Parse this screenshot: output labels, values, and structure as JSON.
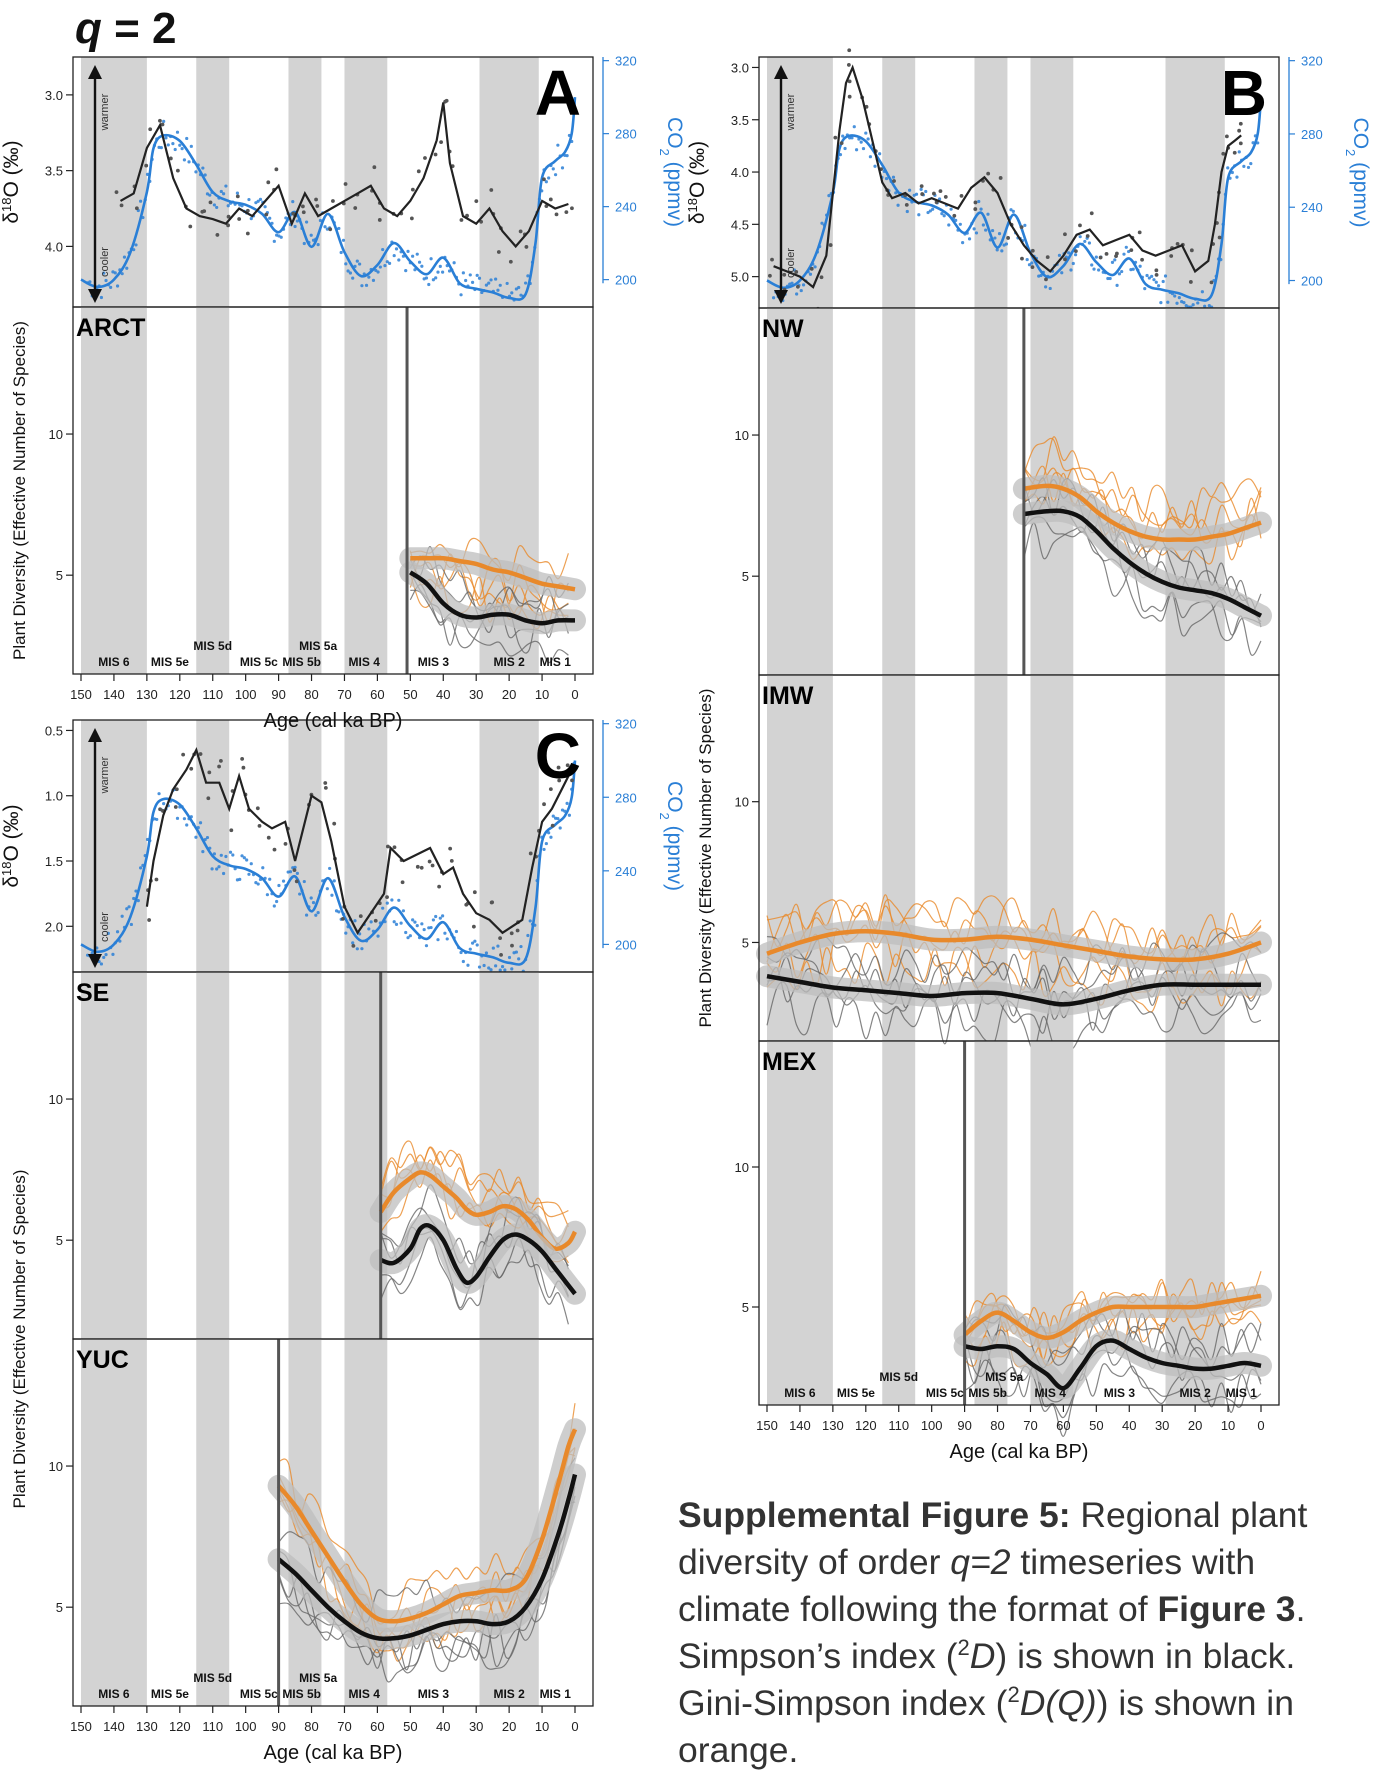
{
  "figure": {
    "title_prefix": "q",
    "title_suffix": " = 2",
    "caption": {
      "lead": "Supplemental Figure 5:",
      "p1": " Regional plant diversity of order ",
      "q_term": "q=2",
      "p2": " timeseries with climate following the format of ",
      "fig_ref": "Figure 3",
      "p3": ". Simpson’s index (",
      "d_sup": "2",
      "d_letter": "D",
      "p4": ") is shown in black. Gini-Simpson index (",
      "gs_sup": "2",
      "gs_letter": "D(Q)",
      "p5": ") is shown in orange."
    },
    "colors": {
      "simpson": "#111111",
      "gini_simpson": "#e8892b",
      "co2": "#2a7fd6",
      "mis_band": "#d3d3d3"
    },
    "xlabel": "Age (cal ka BP)",
    "ylabel_diversity": "Plant Diversity (Effective Number of Species)",
    "ylabel_d18o_pre": "δ",
    "ylabel_d18o_sup": "18",
    "ylabel_d18o_post": "O (‰)",
    "ylabel_co2_pre": "CO",
    "ylabel_co2_sub": "2",
    "ylabel_co2_post": " (ppmv)",
    "arrow_up": "warmer",
    "arrow_down": "cooler",
    "x_ticks": [
      150,
      140,
      130,
      120,
      110,
      100,
      90,
      80,
      70,
      60,
      50,
      40,
      30,
      20,
      10,
      0
    ],
    "co2_ticks": [
      320,
      280,
      240,
      200
    ],
    "diversity_ticks": [
      10,
      5
    ],
    "mis_labels": [
      {
        "label": "MIS 6",
        "age": 140,
        "row": "low"
      },
      {
        "label": "MIS 5e",
        "age": 123,
        "row": "low"
      },
      {
        "label": "MIS 5d",
        "age": 110,
        "row": "high"
      },
      {
        "label": "MIS 5c",
        "age": 96,
        "row": "low"
      },
      {
        "label": "MIS 5b",
        "age": 83,
        "row": "low"
      },
      {
        "label": "MIS 5a",
        "age": 78,
        "row": "high"
      },
      {
        "label": "MIS 4",
        "age": 64,
        "row": "low"
      },
      {
        "label": "MIS 3",
        "age": 43,
        "row": "low"
      },
      {
        "label": "MIS 2",
        "age": 20,
        "row": "low"
      },
      {
        "label": "MIS 1",
        "age": 6,
        "row": "low"
      }
    ]
  },
  "chart_data": [
    {
      "type": "line",
      "panel": "A",
      "kind": "climate",
      "d18o_ticks": [
        "3.0",
        "3.5",
        "4.0"
      ],
      "d18o_range": [
        2.75,
        4.4
      ],
      "d18o_x": [
        138,
        134,
        130,
        126,
        122,
        118,
        114,
        110,
        106,
        102,
        98,
        94,
        90,
        86,
        82,
        78,
        74,
        70,
        66,
        62,
        58,
        54,
        50,
        46,
        42,
        40,
        38,
        34,
        30,
        26,
        22,
        18,
        14,
        10,
        6,
        2
      ],
      "d18o": [
        3.7,
        3.65,
        3.35,
        3.2,
        3.55,
        3.75,
        3.8,
        3.82,
        3.85,
        3.75,
        3.8,
        3.7,
        3.6,
        3.85,
        3.65,
        3.8,
        3.75,
        3.7,
        3.65,
        3.6,
        3.75,
        3.8,
        3.7,
        3.55,
        3.3,
        3.05,
        3.45,
        3.8,
        3.85,
        3.75,
        3.9,
        4.0,
        3.9,
        3.7,
        3.75,
        3.72
      ],
      "co2_range": [
        185,
        322
      ],
      "co2_x": [
        150,
        145,
        140,
        135,
        130,
        128,
        125,
        120,
        115,
        110,
        105,
        100,
        95,
        90,
        85,
        80,
        75,
        70,
        65,
        60,
        55,
        50,
        45,
        40,
        35,
        30,
        25,
        20,
        15,
        12,
        10,
        6,
        3,
        1,
        0
      ],
      "co2": [
        200,
        196,
        200,
        215,
        248,
        272,
        279,
        276,
        263,
        248,
        243,
        241,
        236,
        226,
        237,
        218,
        236,
        215,
        202,
        208,
        220,
        210,
        203,
        212,
        198,
        195,
        193,
        190,
        192,
        220,
        256,
        265,
        270,
        280,
        300
      ]
    },
    {
      "type": "line",
      "panel": "A",
      "kind": "diversity",
      "region": "ARCT",
      "y_range": [
        1.5,
        14.5
      ],
      "record_start": 51,
      "simpson": {
        "x": [
          50,
          45,
          40,
          35,
          30,
          25,
          20,
          15,
          10,
          5,
          0
        ],
        "y": [
          5.1,
          4.7,
          4.0,
          3.6,
          3.5,
          3.6,
          3.6,
          3.4,
          3.3,
          3.4,
          3.4
        ]
      },
      "gini_simpson": {
        "x": [
          50,
          45,
          40,
          35,
          30,
          25,
          20,
          15,
          10,
          5,
          0
        ],
        "y": [
          5.6,
          5.6,
          5.6,
          5.5,
          5.4,
          5.2,
          5.1,
          4.9,
          4.7,
          4.6,
          4.5
        ]
      }
    },
    {
      "type": "line",
      "panel": "B",
      "kind": "climate",
      "d18o_ticks": [
        "3.0",
        "3.5",
        "4.0",
        "4.5",
        "5.0"
      ],
      "d18o_range": [
        2.9,
        5.3
      ],
      "d18o_x": [
        148,
        144,
        140,
        136,
        132,
        128,
        126,
        124,
        121,
        118,
        115,
        112,
        108,
        104,
        100,
        96,
        92,
        88,
        84,
        80,
        76,
        72,
        68,
        64,
        60,
        56,
        52,
        48,
        44,
        40,
        36,
        32,
        28,
        24,
        20,
        16,
        14,
        12,
        10,
        8,
        6
      ],
      "d18o": [
        4.9,
        4.95,
        5.0,
        5.1,
        4.8,
        3.6,
        3.15,
        3.0,
        3.3,
        3.7,
        4.1,
        4.25,
        4.2,
        4.3,
        4.25,
        4.3,
        4.35,
        4.15,
        4.05,
        4.2,
        4.5,
        4.7,
        4.85,
        4.95,
        4.8,
        4.6,
        4.55,
        4.7,
        4.65,
        4.6,
        4.75,
        4.8,
        4.75,
        4.7,
        4.95,
        4.85,
        4.5,
        4.0,
        3.75,
        3.7,
        3.65
      ],
      "co2_range": [
        185,
        322
      ],
      "co2_x": [
        150,
        145,
        140,
        135,
        130,
        128,
        125,
        120,
        115,
        110,
        105,
        100,
        95,
        90,
        85,
        80,
        75,
        70,
        65,
        60,
        55,
        50,
        45,
        40,
        35,
        30,
        25,
        20,
        15,
        12,
        10,
        6,
        3,
        1,
        0
      ],
      "co2": [
        200,
        196,
        200,
        215,
        248,
        272,
        279,
        276,
        263,
        248,
        243,
        241,
        236,
        226,
        237,
        218,
        236,
        215,
        202,
        208,
        220,
        210,
        203,
        212,
        198,
        195,
        193,
        190,
        192,
        220,
        256,
        265,
        270,
        280,
        300
      ]
    },
    {
      "type": "line",
      "panel": "B",
      "kind": "diversity",
      "region": "NW",
      "y_range": [
        1.5,
        14.5
      ],
      "record_start": 72,
      "simpson": {
        "x": [
          72,
          65,
          60,
          55,
          50,
          45,
          40,
          35,
          30,
          25,
          20,
          15,
          10,
          5,
          0
        ],
        "y": [
          7.2,
          7.3,
          7.3,
          7.1,
          6.6,
          6.0,
          5.5,
          5.1,
          4.8,
          4.6,
          4.5,
          4.4,
          4.2,
          3.9,
          3.6
        ]
      },
      "gini_simpson": {
        "x": [
          72,
          65,
          60,
          55,
          50,
          45,
          40,
          35,
          30,
          25,
          20,
          15,
          10,
          5,
          0
        ],
        "y": [
          8.1,
          8.2,
          8.1,
          7.8,
          7.3,
          6.9,
          6.6,
          6.4,
          6.3,
          6.3,
          6.3,
          6.4,
          6.5,
          6.7,
          6.9
        ]
      }
    },
    {
      "type": "line",
      "panel": "B",
      "kind": "diversity",
      "region": "IMW",
      "y_range": [
        1.5,
        14.5
      ],
      "record_start": null,
      "simpson": {
        "x": [
          150,
          140,
          130,
          120,
          110,
          100,
          90,
          80,
          70,
          60,
          50,
          40,
          30,
          20,
          10,
          0
        ],
        "y": [
          3.8,
          3.6,
          3.4,
          3.3,
          3.2,
          3.1,
          3.2,
          3.2,
          3.0,
          2.8,
          3.0,
          3.3,
          3.5,
          3.5,
          3.5,
          3.5
        ]
      },
      "gini_simpson": {
        "x": [
          150,
          140,
          130,
          120,
          110,
          100,
          90,
          80,
          70,
          60,
          50,
          40,
          30,
          20,
          10,
          0
        ],
        "y": [
          4.6,
          5.0,
          5.3,
          5.4,
          5.3,
          5.1,
          5.1,
          5.2,
          5.1,
          4.9,
          4.7,
          4.5,
          4.4,
          4.4,
          4.6,
          5.0
        ]
      }
    },
    {
      "type": "line",
      "panel": "B",
      "kind": "diversity",
      "region": "MEX",
      "y_range": [
        1.5,
        14.5
      ],
      "record_start": 90,
      "simpson": {
        "x": [
          90,
          85,
          80,
          75,
          70,
          65,
          60,
          55,
          50,
          45,
          40,
          35,
          30,
          25,
          20,
          15,
          10,
          5,
          0
        ],
        "y": [
          3.6,
          3.5,
          3.6,
          3.5,
          3.0,
          2.6,
          2.1,
          2.8,
          3.6,
          3.8,
          3.5,
          3.2,
          3.0,
          2.9,
          2.8,
          2.8,
          2.9,
          3.0,
          2.9
        ]
      },
      "gini_simpson": {
        "x": [
          90,
          85,
          80,
          75,
          70,
          65,
          60,
          55,
          50,
          45,
          40,
          35,
          30,
          25,
          20,
          15,
          10,
          5,
          0
        ],
        "y": [
          4.0,
          4.5,
          4.8,
          4.5,
          4.1,
          3.9,
          4.1,
          4.5,
          4.8,
          5.0,
          5.0,
          5.0,
          5.0,
          5.0,
          5.0,
          5.1,
          5.2,
          5.3,
          5.4
        ]
      }
    },
    {
      "type": "line",
      "panel": "C",
      "kind": "climate",
      "d18o_ticks": [
        "0.5",
        "1.0",
        "1.5",
        "2.0"
      ],
      "d18o_range": [
        0.42,
        2.35
      ],
      "d18o_x": [
        130,
        128,
        125,
        122,
        118,
        115,
        112,
        108,
        105,
        102,
        99,
        95,
        92,
        88,
        85,
        80,
        77,
        74,
        70,
        66,
        62,
        58,
        56,
        52,
        48,
        44,
        40,
        37,
        34,
        30,
        26,
        22,
        19,
        16,
        13,
        10,
        7,
        4,
        2
      ],
      "d18o": [
        1.85,
        1.5,
        1.15,
        0.95,
        0.8,
        0.65,
        0.9,
        0.9,
        1.1,
        0.85,
        1.1,
        1.2,
        1.25,
        1.2,
        1.5,
        1.0,
        1.05,
        1.35,
        1.85,
        2.05,
        1.9,
        1.75,
        1.4,
        1.5,
        1.45,
        1.4,
        1.6,
        1.55,
        1.75,
        1.9,
        1.95,
        2.05,
        2.0,
        1.95,
        1.55,
        1.2,
        1.1,
        0.95,
        0.85
      ],
      "co2_range": [
        185,
        322
      ],
      "co2_x": [
        150,
        145,
        140,
        135,
        130,
        128,
        125,
        120,
        115,
        110,
        105,
        100,
        95,
        90,
        85,
        80,
        75,
        70,
        65,
        60,
        55,
        50,
        45,
        40,
        35,
        30,
        25,
        20,
        15,
        12,
        10,
        6,
        3,
        1,
        0
      ],
      "co2": [
        200,
        196,
        200,
        215,
        248,
        272,
        279,
        276,
        263,
        248,
        243,
        241,
        236,
        226,
        237,
        218,
        236,
        215,
        202,
        208,
        220,
        210,
        203,
        212,
        198,
        195,
        193,
        190,
        192,
        220,
        256,
        265,
        270,
        280,
        300
      ]
    },
    {
      "type": "line",
      "panel": "C",
      "kind": "diversity",
      "region": "SE",
      "y_range": [
        1.5,
        14.5
      ],
      "record_start": 59,
      "simpson": {
        "x": [
          59,
          55,
          50,
          47,
          44,
          40,
          36,
          33,
          30,
          26,
          22,
          18,
          14,
          10,
          6,
          2,
          0
        ],
        "y": [
          4.3,
          4.2,
          4.7,
          5.4,
          5.5,
          5.0,
          4.0,
          3.5,
          3.7,
          4.4,
          5.0,
          5.2,
          5.0,
          4.6,
          4.0,
          3.4,
          3.1
        ]
      },
      "gini_simpson": {
        "x": [
          59,
          55,
          50,
          47,
          44,
          40,
          36,
          33,
          30,
          26,
          22,
          18,
          14,
          10,
          6,
          2,
          0
        ],
        "y": [
          6.0,
          6.7,
          7.2,
          7.4,
          7.3,
          6.9,
          6.5,
          6.1,
          5.9,
          6.0,
          6.2,
          6.1,
          5.7,
          5.1,
          4.7,
          4.9,
          5.3
        ]
      }
    },
    {
      "type": "line",
      "panel": "C",
      "kind": "diversity",
      "region": "YUC",
      "y_range": [
        1.5,
        14.5
      ],
      "record_start": 90,
      "simpson": {
        "x": [
          90,
          85,
          80,
          75,
          70,
          65,
          60,
          55,
          50,
          45,
          40,
          35,
          30,
          25,
          20,
          15,
          10,
          5,
          2,
          0
        ],
        "y": [
          6.7,
          6.2,
          5.6,
          5.0,
          4.5,
          4.1,
          3.9,
          3.9,
          4.0,
          4.2,
          4.4,
          4.5,
          4.5,
          4.4,
          4.5,
          5.0,
          6.0,
          7.6,
          8.8,
          9.7
        ]
      },
      "gini_simpson": {
        "x": [
          90,
          85,
          80,
          75,
          70,
          65,
          60,
          55,
          50,
          45,
          40,
          35,
          30,
          25,
          20,
          15,
          10,
          5,
          2,
          0
        ],
        "y": [
          9.3,
          8.6,
          7.7,
          6.8,
          5.9,
          5.1,
          4.6,
          4.5,
          4.6,
          4.8,
          5.1,
          5.4,
          5.5,
          5.6,
          5.6,
          6.0,
          7.4,
          9.4,
          10.7,
          11.3
        ]
      }
    }
  ]
}
